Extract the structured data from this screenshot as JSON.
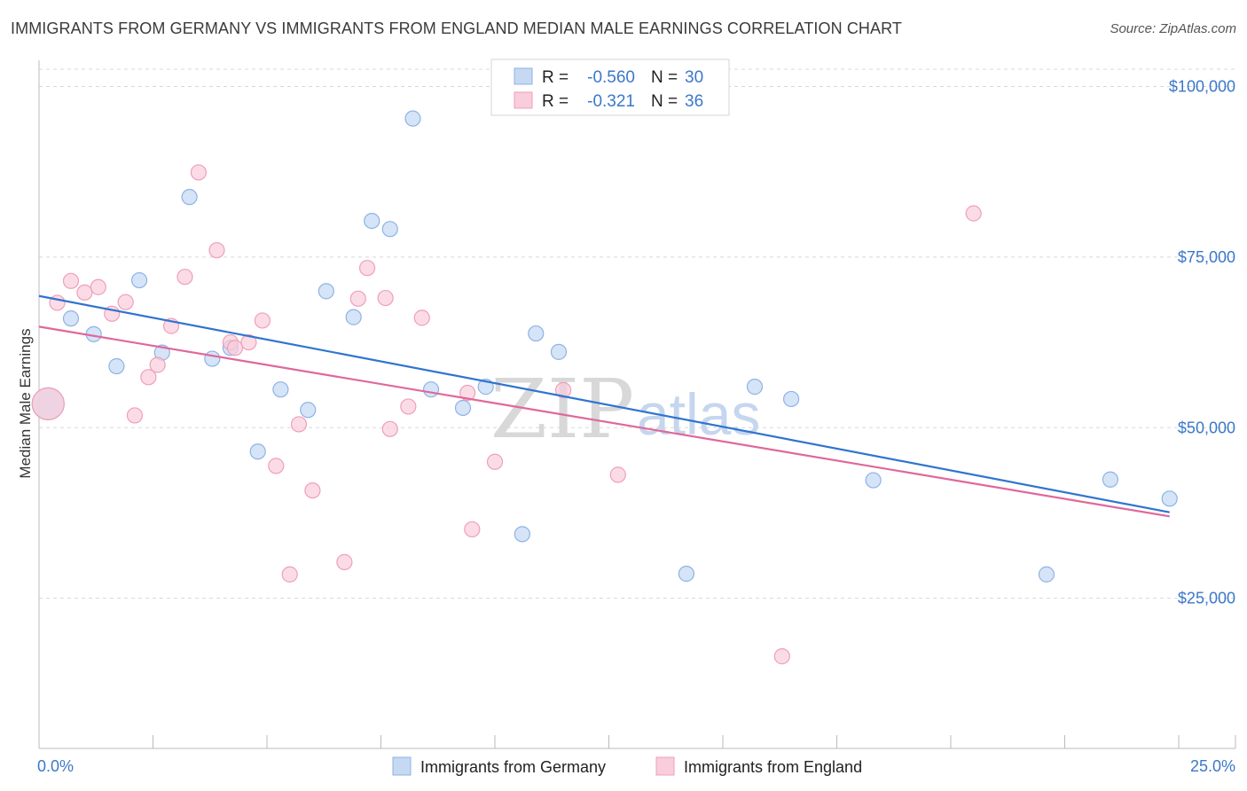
{
  "title": "IMMIGRANTS FROM GERMANY VS IMMIGRANTS FROM ENGLAND MEDIAN MALE EARNINGS CORRELATION CHART",
  "source": "Source: ZipAtlas.com",
  "watermark": {
    "zip": "ZIP",
    "atlas": "atlas"
  },
  "colors": {
    "germany_fill": "#c5d9f3",
    "germany_stroke": "#8db3e6",
    "germany_line": "#2f74d0",
    "england_fill": "#f9cddb",
    "england_stroke": "#ef9fb8",
    "england_line": "#e0679a",
    "tick_text": "#3b78c8",
    "grid": "#d8d8d8"
  },
  "stats": [
    {
      "series": "Immigrants from Germany",
      "r_label": "R =",
      "r": "-0.560",
      "n_label": "N =",
      "n": "30"
    },
    {
      "series": "Immigrants from England",
      "r_label": "R =",
      "r": "-0.321",
      "n_label": "N =",
      "n": "36"
    }
  ],
  "chart_data": {
    "type": "scatter",
    "title": "IMMIGRANTS FROM GERMANY VS IMMIGRANTS FROM ENGLAND MEDIAN MALE EARNINGS CORRELATION CHART",
    "xlabel": "",
    "ylabel": "Median Male Earnings",
    "xlim": [
      0,
      25
    ],
    "ylim": [
      3000,
      105000
    ],
    "x_tick_labels": [
      {
        "value": 0,
        "label": "0.0%"
      },
      {
        "value": 25,
        "label": "25.0%"
      }
    ],
    "y_ticks": [
      {
        "value": 25000,
        "label": "$25,000"
      },
      {
        "value": 50000,
        "label": "$50,000"
      },
      {
        "value": 75000,
        "label": "$75,000"
      },
      {
        "value": 100000,
        "label": "$100,000"
      }
    ],
    "legend_position": "bottom",
    "series": [
      {
        "name": "Immigrants from Germany",
        "points": [
          [
            0.2,
            53500,
            "large"
          ],
          [
            0.7,
            66000
          ],
          [
            1.2,
            63700
          ],
          [
            1.7,
            59000
          ],
          [
            2.2,
            71600
          ],
          [
            2.7,
            61000
          ],
          [
            3.3,
            83800
          ],
          [
            3.8,
            60100
          ],
          [
            4.2,
            61700
          ],
          [
            4.8,
            46500
          ],
          [
            5.3,
            55600
          ],
          [
            5.9,
            52600
          ],
          [
            6.3,
            70000
          ],
          [
            6.9,
            66200
          ],
          [
            7.3,
            80300
          ],
          [
            7.7,
            79100
          ],
          [
            8.2,
            95300
          ],
          [
            8.6,
            55600
          ],
          [
            9.3,
            52900
          ],
          [
            9.8,
            56000
          ],
          [
            10.6,
            34400
          ],
          [
            10.9,
            63800
          ],
          [
            11.4,
            61100
          ],
          [
            14.2,
            28600
          ],
          [
            15.7,
            56000
          ],
          [
            16.5,
            54200
          ],
          [
            18.3,
            42300
          ],
          [
            22.1,
            28500
          ],
          [
            23.5,
            42400
          ],
          [
            24.8,
            39600
          ]
        ],
        "trend": {
          "from": [
            0,
            69300
          ],
          "to": [
            24.8,
            37600
          ]
        }
      },
      {
        "name": "Immigrants from England",
        "points": [
          [
            0.2,
            53500,
            "large"
          ],
          [
            0.4,
            68300
          ],
          [
            0.7,
            71500
          ],
          [
            1.0,
            69800
          ],
          [
            1.3,
            70600
          ],
          [
            1.6,
            66700
          ],
          [
            1.9,
            68400
          ],
          [
            2.1,
            51800
          ],
          [
            2.4,
            57400
          ],
          [
            2.6,
            59200
          ],
          [
            2.9,
            64900
          ],
          [
            3.2,
            72100
          ],
          [
            3.5,
            87400
          ],
          [
            3.9,
            76000
          ],
          [
            4.2,
            62500
          ],
          [
            4.3,
            61700
          ],
          [
            4.6,
            62500
          ],
          [
            4.9,
            65700
          ],
          [
            5.2,
            44400
          ],
          [
            5.5,
            28500
          ],
          [
            5.7,
            50500
          ],
          [
            6.0,
            40800
          ],
          [
            6.7,
            30300
          ],
          [
            7.0,
            68900
          ],
          [
            7.2,
            73400
          ],
          [
            7.6,
            69000
          ],
          [
            7.7,
            49800
          ],
          [
            8.1,
            53100
          ],
          [
            8.4,
            66100
          ],
          [
            9.4,
            55100
          ],
          [
            9.5,
            35100
          ],
          [
            10.0,
            45000
          ],
          [
            11.5,
            55500
          ],
          [
            12.7,
            43100
          ],
          [
            16.3,
            16500
          ],
          [
            20.5,
            81400
          ]
        ],
        "trend": {
          "from": [
            0,
            64800
          ],
          "to": [
            24.8,
            37000
          ]
        }
      }
    ]
  }
}
